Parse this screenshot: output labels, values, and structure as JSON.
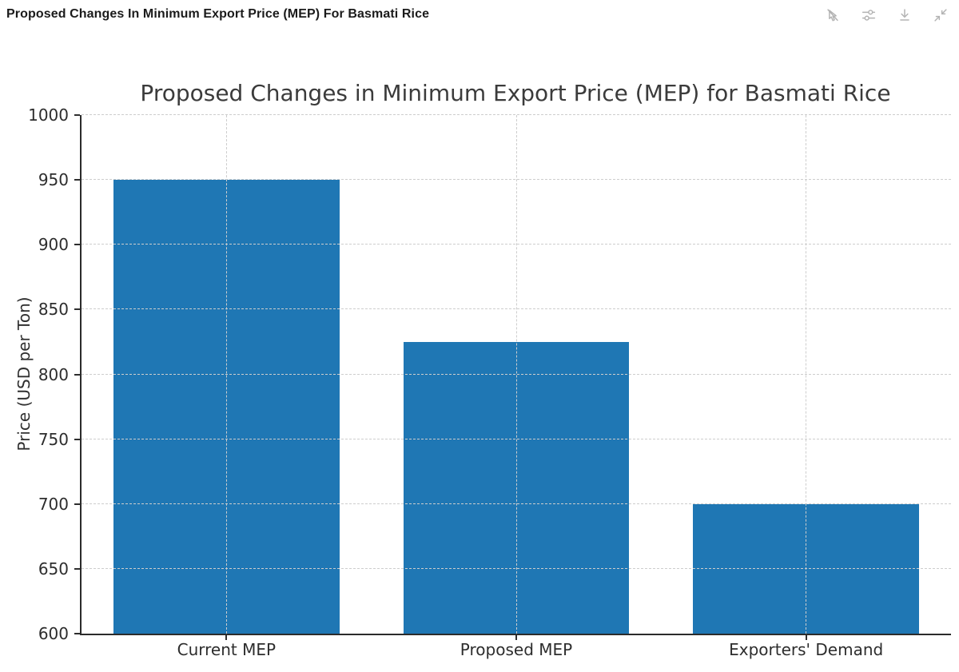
{
  "window": {
    "title": "Proposed Changes In Minimum Export Price (MEP) For Basmati Rice",
    "toolbar": {
      "icons": [
        {
          "name": "pointer-off-icon"
        },
        {
          "name": "sliders-icon"
        },
        {
          "name": "download-icon"
        },
        {
          "name": "collapse-icon"
        }
      ],
      "icon_color": "#b3b3b3"
    }
  },
  "chart_data": {
    "type": "bar",
    "title": "Proposed Changes in Minimum Export Price (MEP) for Basmati Rice",
    "categories": [
      "Current MEP",
      "Proposed MEP",
      "Exporters' Demand"
    ],
    "values": [
      950,
      825,
      700
    ],
    "xlabel": "",
    "ylabel": "Price (USD per Ton)",
    "ylim": [
      600,
      1000
    ],
    "ytick_step": 50,
    "bar_color": "#1f77b4",
    "grid": "dashed, horizontal at y ticks and vertical at category centers, drawn above bars",
    "legend": "none"
  }
}
